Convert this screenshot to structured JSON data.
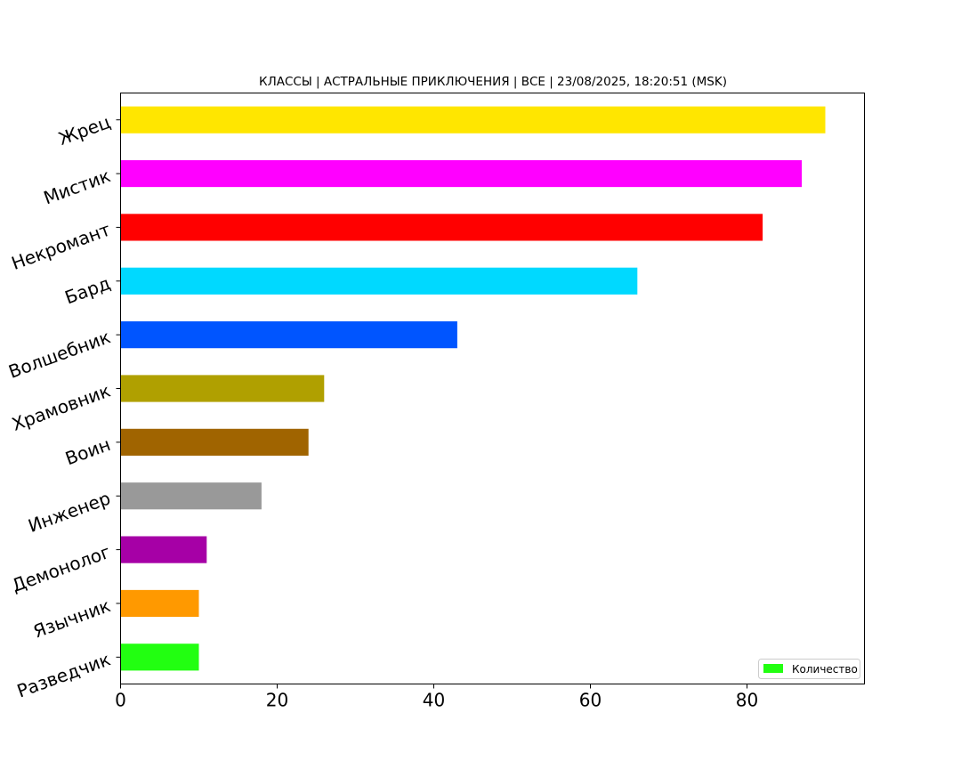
{
  "chart_data": {
    "type": "bar",
    "orientation": "horizontal",
    "title": "КЛАССЫ | АСТРАЛЬНЫЕ ПРИКЛЮЧЕНИЯ | ВСЕ | 23/08/2025, 18:20:51 (MSK)",
    "xlabel": "",
    "ylabel": "",
    "xlim": [
      0,
      95
    ],
    "xticks": [
      0,
      20,
      40,
      60,
      80
    ],
    "grid": false,
    "legend": {
      "placement": "lower-right",
      "entries": [
        {
          "label": "Количество",
          "color": "#22ff11"
        }
      ]
    },
    "categories": [
      "Жрец",
      "Мистик",
      "Некромант",
      "Бард",
      "Волшебник",
      "Храмовник",
      "Воин",
      "Инженер",
      "Демонолог",
      "Язычник",
      "Разведчик"
    ],
    "series": [
      {
        "name": "Количество",
        "values": [
          90,
          87,
          82,
          66,
          43,
          26,
          24,
          18,
          11,
          10,
          10
        ],
        "colors": [
          "#ffe600",
          "#ff00ff",
          "#ff0000",
          "#00d9ff",
          "#0055ff",
          "#b0a000",
          "#a06400",
          "#999999",
          "#a600a6",
          "#ff9900",
          "#22ff11"
        ]
      }
    ]
  }
}
